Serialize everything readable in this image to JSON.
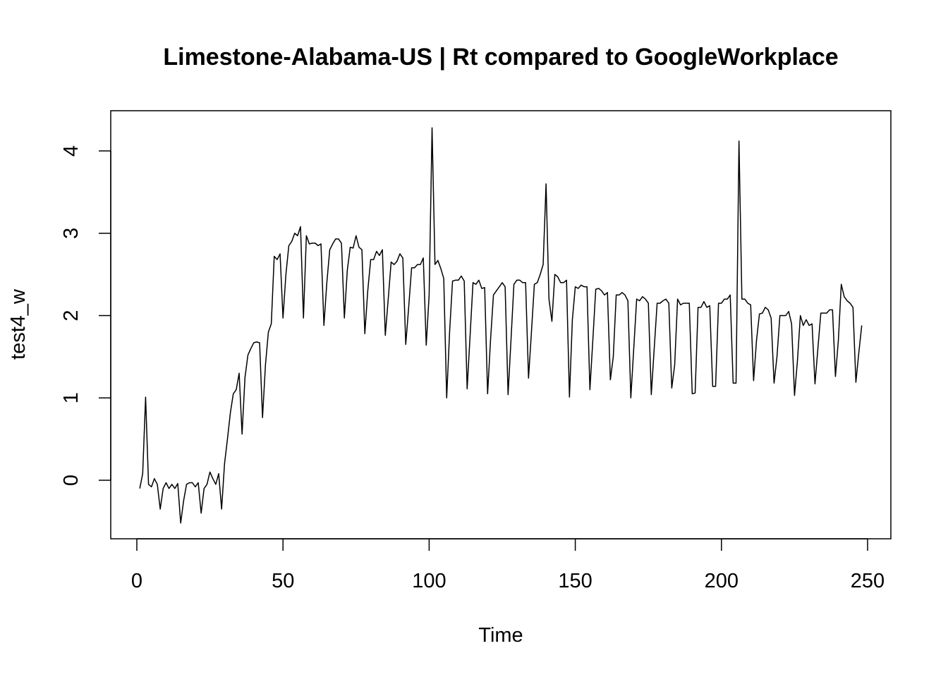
{
  "chart_data": {
    "type": "line",
    "title": "Limestone-Alabama-US | Rt compared to GoogleWorkplace",
    "xlabel": "Time",
    "ylabel": "test4_w",
    "xlim": [
      1,
      248
    ],
    "ylim": [
      -0.52,
      4.3
    ],
    "x_ticks": [
      0,
      50,
      100,
      150,
      200,
      250
    ],
    "y_ticks": [
      0,
      1,
      2,
      3,
      4
    ],
    "grid": false,
    "legend": "none",
    "line_color": "#000000",
    "series": [
      {
        "x_start": 1,
        "values": [
          -0.1,
          0.08,
          1.01,
          -0.05,
          -0.08,
          0.02,
          -0.05,
          -0.35,
          -0.1,
          -0.03,
          -0.1,
          -0.05,
          -0.1,
          -0.04,
          -0.52,
          -0.25,
          -0.05,
          -0.03,
          -0.03,
          -0.08,
          -0.03,
          -0.4,
          -0.1,
          -0.05,
          0.1,
          0.02,
          -0.05,
          0.08,
          -0.35,
          0.2,
          0.5,
          0.82,
          1.05,
          1.1,
          1.3,
          0.56,
          1.25,
          1.52,
          1.6,
          1.67,
          1.68,
          1.67,
          0.76,
          1.4,
          1.8,
          1.9,
          2.72,
          2.68,
          2.75,
          1.97,
          2.5,
          2.85,
          2.9,
          3.0,
          2.97,
          3.08,
          1.97,
          2.97,
          2.87,
          2.88,
          2.88,
          2.85,
          2.87,
          1.88,
          2.4,
          2.8,
          2.87,
          2.93,
          2.93,
          2.88,
          1.97,
          2.55,
          2.83,
          2.82,
          2.97,
          2.83,
          2.8,
          1.78,
          2.3,
          2.68,
          2.68,
          2.78,
          2.73,
          2.8,
          1.76,
          2.2,
          2.65,
          2.62,
          2.66,
          2.75,
          2.7,
          1.65,
          2.1,
          2.58,
          2.58,
          2.62,
          2.62,
          2.7,
          1.64,
          2.25,
          4.28,
          2.62,
          2.67,
          2.57,
          2.45,
          1.0,
          1.8,
          2.42,
          2.43,
          2.43,
          2.48,
          2.42,
          1.11,
          1.75,
          2.4,
          2.38,
          2.43,
          2.33,
          2.34,
          1.05,
          1.7,
          2.25,
          2.3,
          2.35,
          2.4,
          2.35,
          1.04,
          1.7,
          2.38,
          2.43,
          2.43,
          2.4,
          2.4,
          1.24,
          1.8,
          2.38,
          2.4,
          2.5,
          2.62,
          3.6,
          2.2,
          1.93,
          2.5,
          2.47,
          2.4,
          2.4,
          2.43,
          1.01,
          1.95,
          2.35,
          2.33,
          2.37,
          2.35,
          2.35,
          1.1,
          1.7,
          2.32,
          2.33,
          2.3,
          2.25,
          2.28,
          1.22,
          1.5,
          2.25,
          2.25,
          2.28,
          2.25,
          2.18,
          1.0,
          1.6,
          2.2,
          2.18,
          2.23,
          2.2,
          2.15,
          1.04,
          1.6,
          2.15,
          2.15,
          2.18,
          2.2,
          2.15,
          1.12,
          1.4,
          2.2,
          2.13,
          2.15,
          2.15,
          2.15,
          1.05,
          1.06,
          2.1,
          2.1,
          2.17,
          2.1,
          2.12,
          1.14,
          1.14,
          2.15,
          2.15,
          2.2,
          2.2,
          2.25,
          1.18,
          1.18,
          4.12,
          2.2,
          2.2,
          2.15,
          2.13,
          1.21,
          1.7,
          2.02,
          2.03,
          2.1,
          2.07,
          1.97,
          1.18,
          1.5,
          2.0,
          2.0,
          2.0,
          2.05,
          1.9,
          1.03,
          1.45,
          2.0,
          1.88,
          1.95,
          1.88,
          1.9,
          1.17,
          1.6,
          2.03,
          2.03,
          2.03,
          2.07,
          2.07,
          1.26,
          1.7,
          2.38,
          2.23,
          2.18,
          2.15,
          2.1,
          1.19,
          1.55,
          1.88
        ]
      }
    ]
  }
}
